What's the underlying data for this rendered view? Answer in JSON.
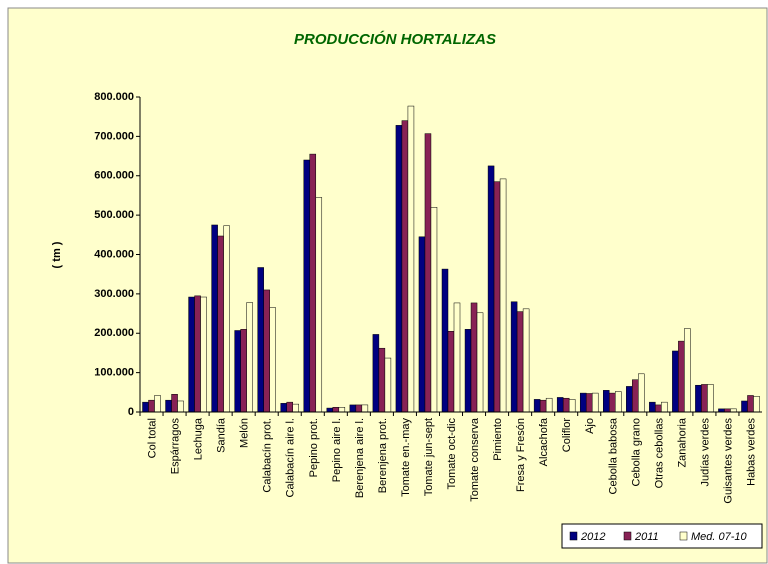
{
  "chart_data": {
    "type": "bar",
    "title": "PRODUCCIÓN HORTALIZAS",
    "y_label": "( tm )",
    "categories": [
      "Col total",
      "Espárragos",
      "Lechuga",
      "Sandía",
      "Melón",
      "Calabacín prot.",
      "Calabacín aire l.",
      "Pepino prot.",
      "Pepino aire l.",
      "Berenjena aire l.",
      "Berenjena prot.",
      "Tomate en.-may",
      "Tomate jun-sept",
      "Tomate oct-dic",
      "Tomate conserva",
      "Pimiento",
      "Fresa y Fresón",
      "Alcachofa",
      "Coliflor",
      "Ajo",
      "Cebolla babosa",
      "Cebolla grano",
      "Otras cebollas",
      "Zanahoria",
      "Judías verdes",
      "Guisantes verdes",
      "Habas verdes"
    ],
    "series": [
      {
        "name": "2012",
        "color": "#000080",
        "values": [
          25000,
          30000,
          292000,
          475000,
          207000,
          367000,
          22000,
          640000,
          10000,
          18000,
          197000,
          728000,
          445000,
          363000,
          210000,
          625000,
          280000,
          32000,
          37000,
          48000,
          55000,
          65000,
          25000,
          155000,
          68000,
          8000,
          28000
        ]
      },
      {
        "name": "2011",
        "color": "#882255",
        "values": [
          30000,
          45000,
          295000,
          447000,
          210000,
          310000,
          25000,
          655000,
          12000,
          18000,
          162000,
          740000,
          707000,
          205000,
          277000,
          585000,
          255000,
          30000,
          35000,
          47000,
          48000,
          82000,
          18000,
          180000,
          70000,
          8000,
          42000
        ]
      },
      {
        "name": "Med. 07-10",
        "color": "#FFFFCC",
        "values": [
          42000,
          28000,
          292000,
          473000,
          278000,
          265000,
          20000,
          545000,
          12000,
          18000,
          137000,
          777000,
          520000,
          277000,
          252000,
          592000,
          262000,
          35000,
          32000,
          48000,
          52000,
          97000,
          25000,
          212000,
          70000,
          8000,
          40000
        ]
      }
    ],
    "ylim": [
      0,
      800000
    ],
    "yticks": [
      0,
      {
        "value": 100000,
        "label": "100.000"
      },
      {
        "value": 200000,
        "label": "200.000"
      },
      {
        "value": 300000,
        "label": "300.000"
      },
      {
        "value": 400000,
        "label": "400.000"
      },
      {
        "value": 500000,
        "label": "500.000"
      },
      {
        "value": 600000,
        "label": "600.000"
      },
      {
        "value": 700000,
        "label": "700.000"
      },
      {
        "value": 800000,
        "label": "800.000"
      }
    ],
    "legend": "bottom-right"
  }
}
